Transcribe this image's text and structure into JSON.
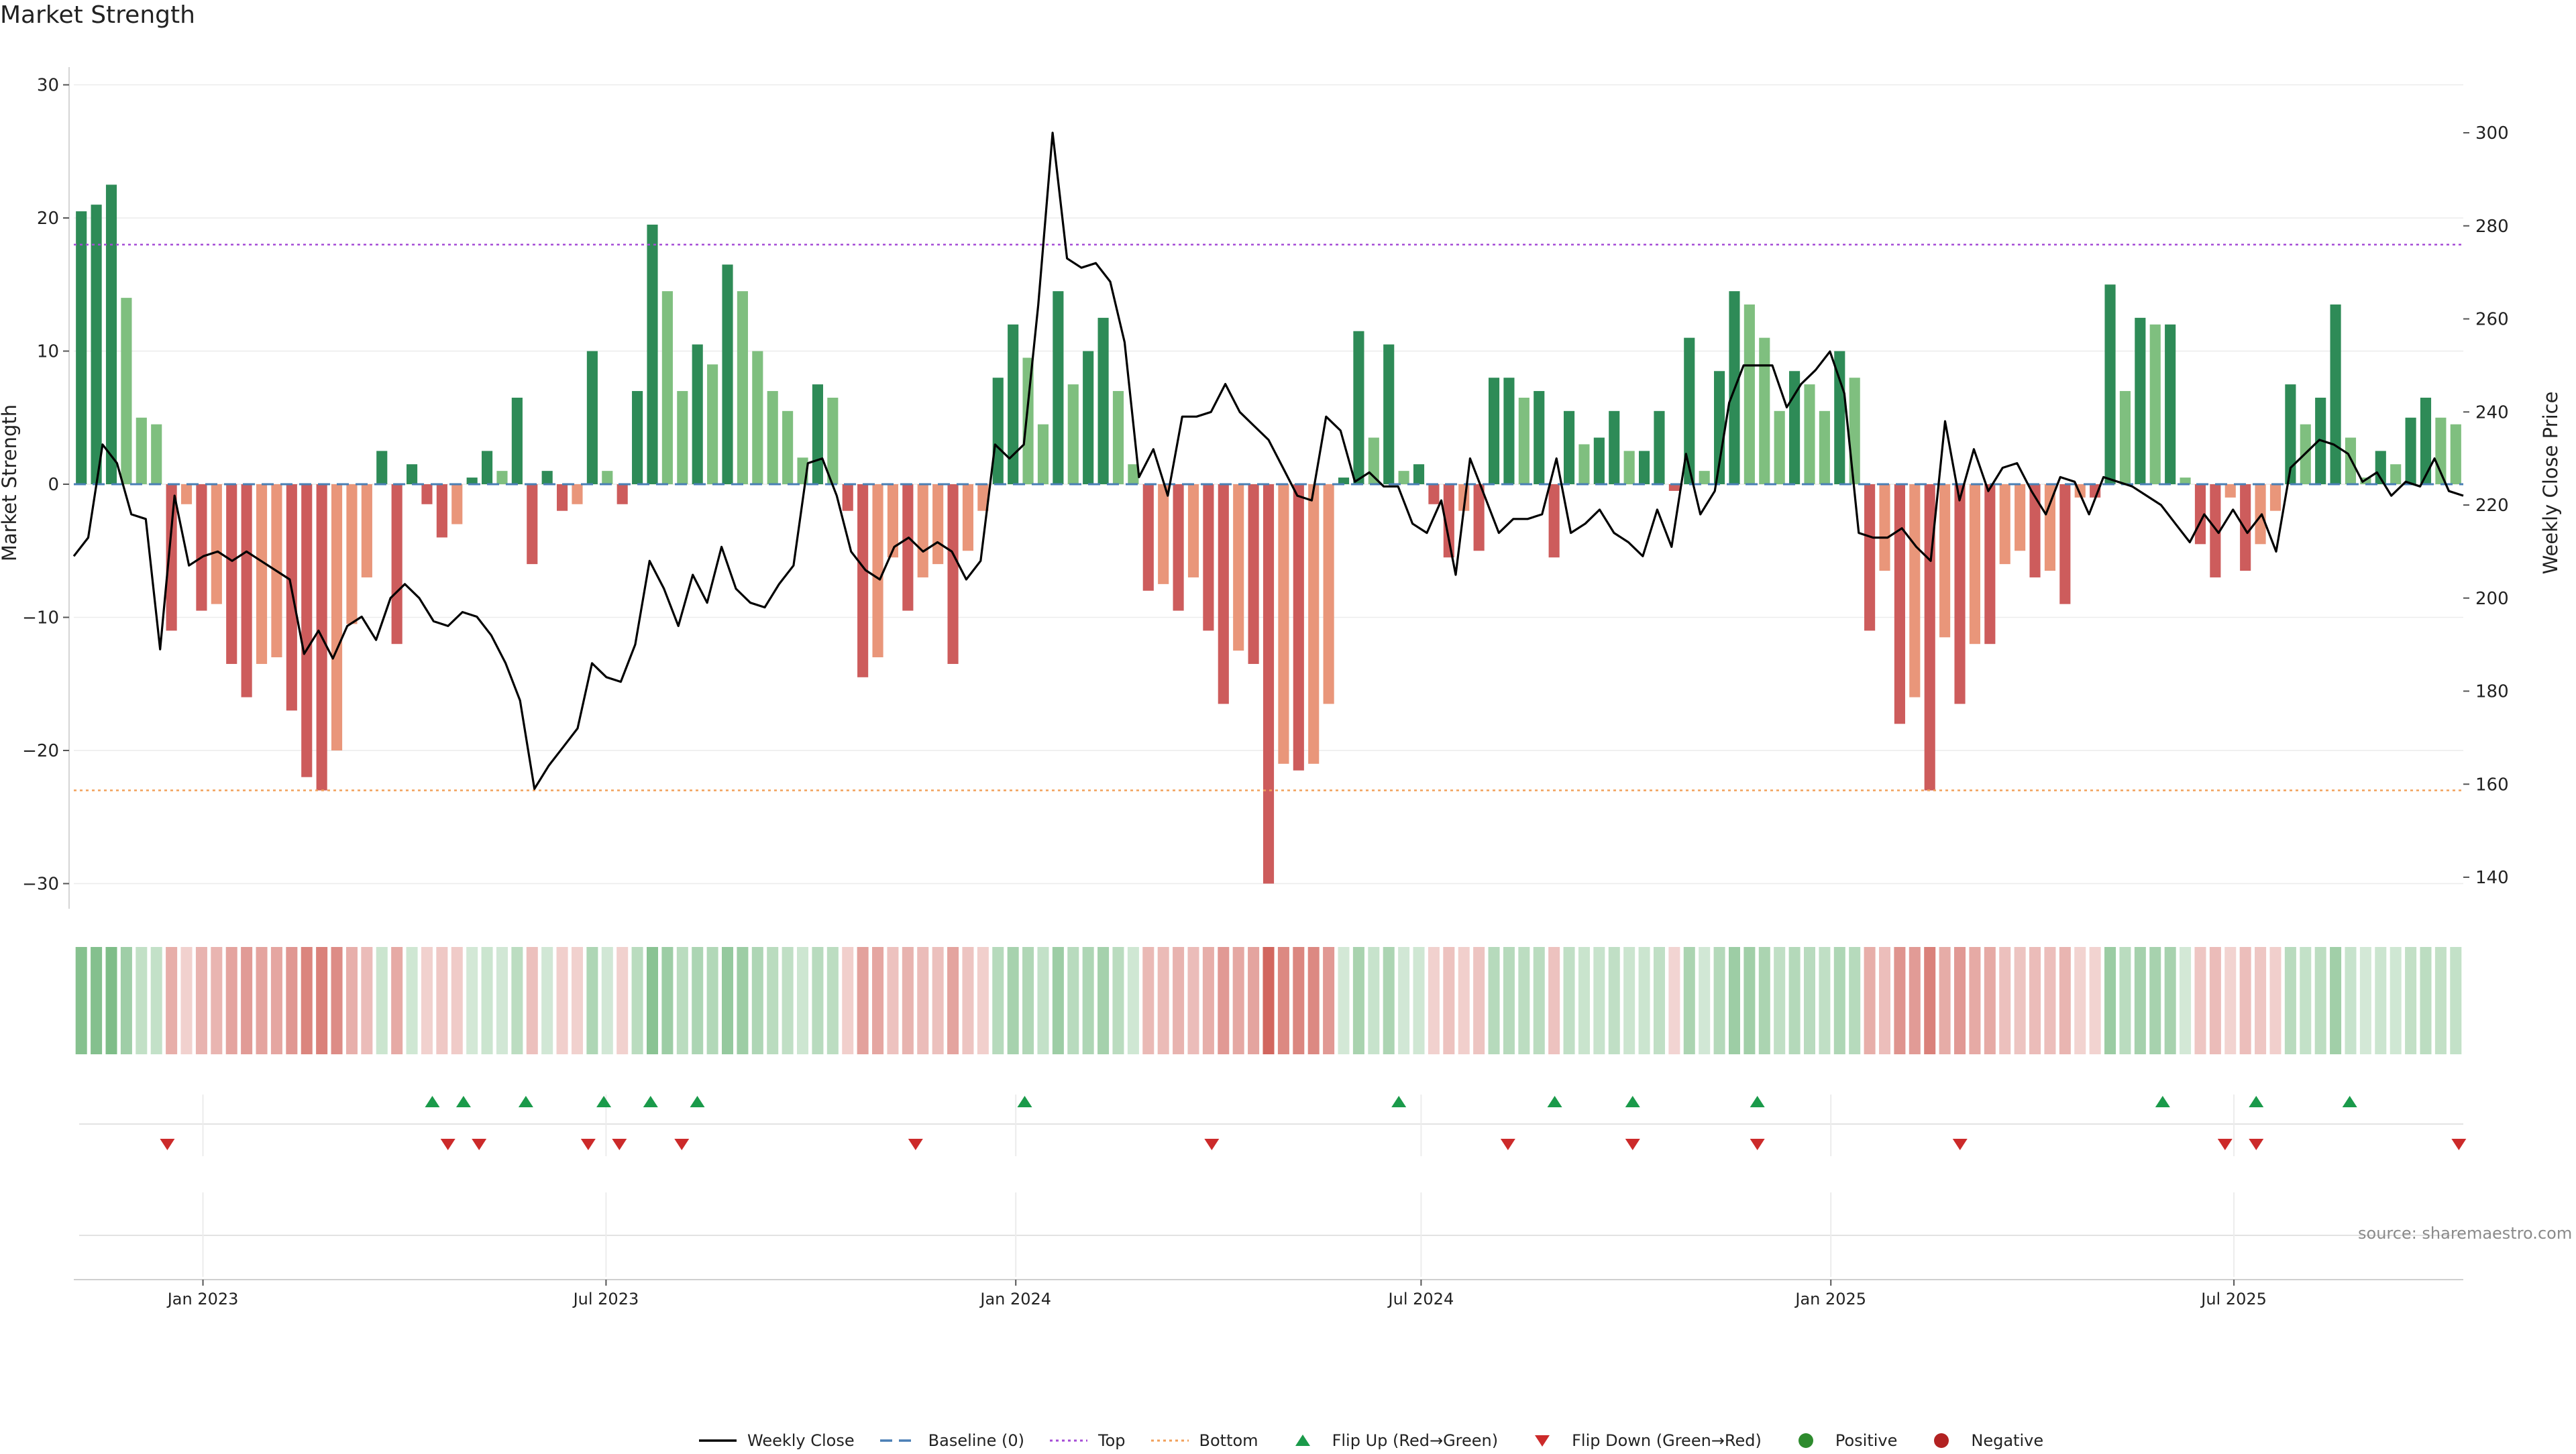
{
  "title": "Market Strength",
  "source": "source: sharemaestro.com",
  "colors": {
    "pos_strong": "#2e8b57",
    "pos_light": "#7fbf7f",
    "neg_strong": "#cd5c5c",
    "neg_light": "#e9967a",
    "price": "#000000",
    "baseline": "#4a7fb5",
    "top": "#a64dd6",
    "bottom": "#f2a05a",
    "flip_up": "#1a9a4a",
    "flip_down": "#cc2a2a",
    "positive_dot": "#2e8b2e",
    "negative_dot": "#b22222",
    "grid": "#ececec"
  },
  "legend": [
    {
      "key": "weekly_close",
      "label": "Weekly Close",
      "icon": "solid-line-icon"
    },
    {
      "key": "baseline",
      "label": "Baseline (0)",
      "icon": "dashed-line-icon"
    },
    {
      "key": "top",
      "label": "Top",
      "icon": "dotted-line-icon"
    },
    {
      "key": "bottom",
      "label": "Bottom",
      "icon": "dotted-line-icon"
    },
    {
      "key": "flip_up",
      "label": "Flip Up (Red→Green)",
      "icon": "triangle-up-icon"
    },
    {
      "key": "flip_down",
      "label": "Flip Down (Green→Red)",
      "icon": "triangle-down-icon"
    },
    {
      "key": "positive",
      "label": "Positive",
      "icon": "circle-icon"
    },
    {
      "key": "negative",
      "label": "Negative",
      "icon": "circle-icon"
    }
  ],
  "chart_data": {
    "type": "bar",
    "title": "Market Strength",
    "ylabel": "Market Strength",
    "y2label": "Weekly Close Price",
    "ylim": [
      -32,
      32
    ],
    "y2lim": [
      125,
      310
    ],
    "yticks": [
      -30,
      -20,
      -10,
      0,
      10,
      20,
      30
    ],
    "y2ticks": [
      140,
      160,
      180,
      200,
      220,
      240,
      260,
      280,
      300
    ],
    "grid": true,
    "top_line": 18,
    "bottom_line": -23,
    "x_start": "2022-11-04",
    "x_end": "2025-10-12",
    "xticks": [
      {
        "label": "Jan 2023",
        "date": "2023-01-01"
      },
      {
        "label": "Jul 2023",
        "date": "2023-07-01"
      },
      {
        "label": "Jan 2024",
        "date": "2024-01-01"
      },
      {
        "label": "Jul 2024",
        "date": "2024-07-01"
      },
      {
        "label": "Jan 2025",
        "date": "2025-01-01"
      },
      {
        "label": "Jul 2025",
        "date": "2025-07-01"
      }
    ],
    "series": [
      {
        "name": "Market Strength",
        "kind": "bar",
        "values": [
          20.5,
          21,
          22.5,
          14,
          5,
          4.5,
          -11,
          -1.5,
          -9.5,
          -9,
          -13.5,
          -16,
          -13.5,
          -13,
          -17,
          -22,
          -23,
          -20,
          -10.5,
          -7,
          2.5,
          -12,
          1.5,
          -1.5,
          -4,
          -3,
          0.5,
          2.5,
          1,
          6.5,
          -6,
          1,
          -2,
          -1.5,
          10,
          1,
          -1.5,
          7,
          19.5,
          14.5,
          7,
          10.5,
          9,
          16.5,
          14.5,
          10,
          7,
          5.5,
          2,
          7.5,
          6.5,
          -2,
          -14.5,
          -13,
          -5.5,
          -9.5,
          -7,
          -6,
          -13.5,
          -5,
          -2,
          8,
          12,
          9.5,
          4.5,
          14.5,
          7.5,
          10,
          12.5,
          7,
          1.5,
          -8,
          -7.5,
          -9.5,
          -7,
          -11,
          -16.5,
          -12.5,
          -13.5,
          -30,
          -21,
          -21.5,
          -21,
          -16.5,
          0.5,
          11.5,
          3.5,
          10.5,
          1,
          1.5,
          -1.5,
          -5.5,
          -2,
          -5,
          8,
          8,
          6.5,
          7,
          -5.5,
          5.5,
          3,
          3.5,
          5.5,
          2.5,
          2.5,
          5.5,
          -0.5,
          11,
          1,
          8.5,
          14.5,
          13.5,
          11,
          5.5,
          8.5,
          7.5,
          5.5,
          10,
          8,
          -11,
          -6.5,
          -18,
          -16,
          -23,
          -11.5,
          -16.5,
          -12,
          -12,
          -6,
          -5,
          -7,
          -6.5,
          -9,
          -1,
          -1,
          15,
          7,
          12.5,
          12,
          12,
          0.5,
          -4.5,
          -7,
          -1,
          -6.5,
          -4.5,
          -2,
          7.5,
          4.5,
          6.5,
          13.5,
          3.5,
          0.5,
          2.5,
          1.5,
          5,
          6.5,
          5,
          4.5
        ]
      },
      {
        "name": "Weekly Close",
        "kind": "line",
        "values": [
          209,
          213,
          233,
          229,
          218,
          217,
          189,
          222,
          207,
          209,
          210,
          208,
          210,
          208,
          206,
          204,
          188,
          193,
          187,
          194,
          196,
          191,
          200,
          203,
          200,
          195,
          194,
          197,
          196,
          192,
          186,
          178,
          159,
          164,
          168,
          172,
          186,
          183,
          182,
          190,
          208,
          202,
          194,
          205,
          199,
          211,
          202,
          199,
          198,
          203,
          207,
          229,
          230,
          222,
          210,
          206,
          204,
          211,
          213,
          210,
          212,
          210,
          204,
          208,
          233,
          230,
          233,
          263,
          300,
          273,
          271,
          272,
          268,
          255,
          226,
          232,
          222,
          239,
          239,
          240,
          246,
          240,
          237,
          234,
          228,
          222,
          221,
          239,
          236,
          225,
          227,
          224,
          224,
          216,
          214,
          221,
          205,
          230,
          222,
          214,
          217,
          217,
          218,
          230,
          214,
          216,
          219,
          214,
          212,
          209,
          219,
          211,
          231,
          218,
          223,
          242,
          250,
          250,
          250,
          241,
          246,
          249,
          253,
          244,
          214,
          213,
          213,
          215,
          211,
          208,
          238,
          221,
          232,
          223,
          228,
          229,
          223,
          218,
          226,
          225,
          218,
          226,
          225,
          224,
          222,
          220,
          216,
          212,
          218,
          214,
          219,
          214,
          218,
          210,
          228,
          231,
          234,
          233,
          231,
          225,
          227,
          222,
          225,
          224,
          230,
          223,
          222
        ]
      },
      {
        "name": "Flip Up (Red→Green)",
        "kind": "markers",
        "dates": [
          "2023-04-14",
          "2023-04-28",
          "2023-05-26",
          "2023-06-30",
          "2023-07-21",
          "2023-08-11",
          "2024-01-05",
          "2024-06-21",
          "2024-08-30",
          "2024-10-04",
          "2024-11-29",
          "2025-05-30",
          "2025-07-11",
          "2025-08-22"
        ]
      },
      {
        "name": "Flip Down (Green→Red)",
        "kind": "markers",
        "dates": [
          "2022-12-16",
          "2023-04-21",
          "2023-05-05",
          "2023-06-23",
          "2023-07-07",
          "2023-08-04",
          "2023-11-17",
          "2024-03-29",
          "2024-08-09",
          "2024-10-04",
          "2024-11-29",
          "2025-02-28",
          "2025-06-27",
          "2025-07-11",
          "2025-10-10"
        ]
      }
    ]
  }
}
